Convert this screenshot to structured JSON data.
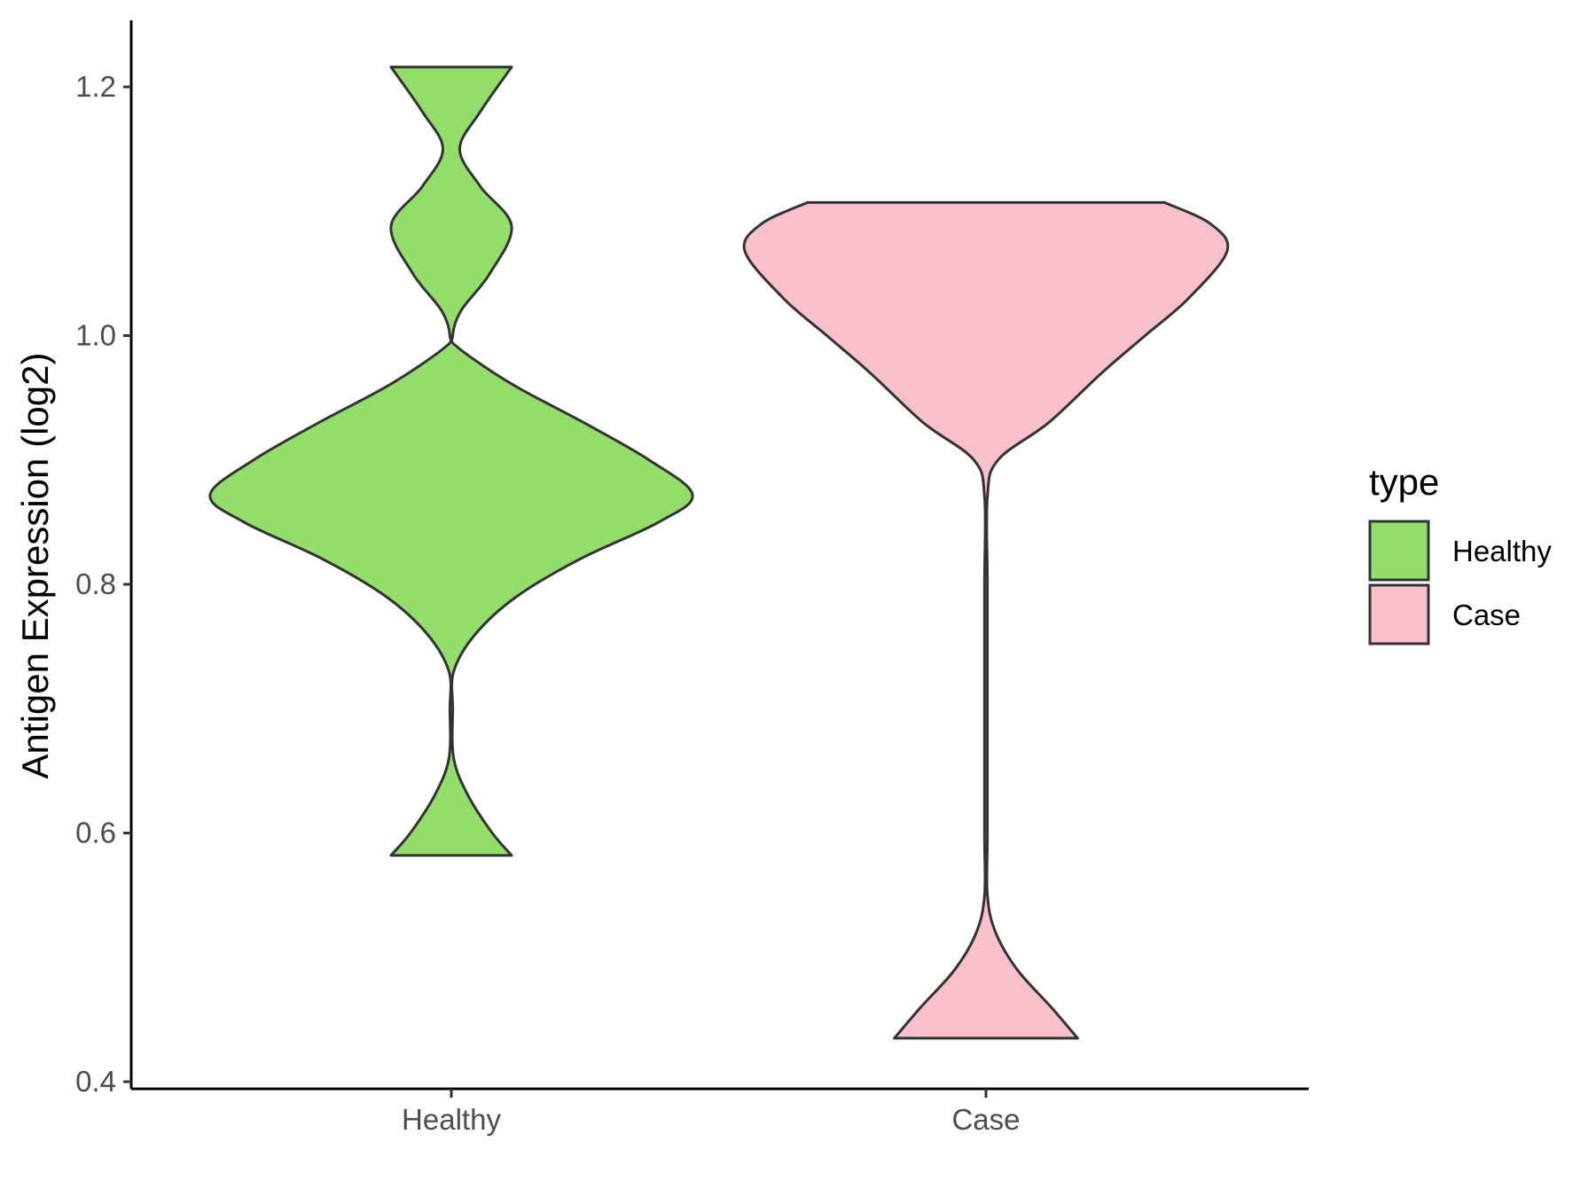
{
  "chart_data": {
    "type": "violin",
    "title": "",
    "xlabel": "",
    "ylabel": "Antigen Expression (log2)",
    "ylim": [
      0.4,
      1.25
    ],
    "yticks": [
      "0.4",
      "0.6",
      "0.8",
      "1.0",
      "1.2"
    ],
    "categories": [
      "Healthy",
      "Case"
    ],
    "grid": false,
    "legend": {
      "title": "type",
      "position": "right",
      "entries": [
        "Healthy",
        "Case"
      ]
    },
    "colors": {
      "Healthy": "#93dd6a",
      "Case": "#f7c0cb",
      "outline": "#333333"
    },
    "series": [
      {
        "name": "Healthy",
        "min": 0.582,
        "max": 1.216,
        "density": [
          [
            0.582,
            0.25
          ],
          [
            0.6,
            0.17
          ],
          [
            0.63,
            0.07
          ],
          [
            0.66,
            0.01
          ],
          [
            0.7,
            0.005
          ],
          [
            0.73,
            0.01
          ],
          [
            0.76,
            0.1
          ],
          [
            0.79,
            0.27
          ],
          [
            0.82,
            0.53
          ],
          [
            0.85,
            0.86
          ],
          [
            0.872,
            1.0
          ],
          [
            0.9,
            0.82
          ],
          [
            0.93,
            0.55
          ],
          [
            0.96,
            0.26
          ],
          [
            0.99,
            0.03
          ],
          [
            1.0,
            0.005
          ],
          [
            1.02,
            0.04
          ],
          [
            1.05,
            0.16
          ],
          [
            1.088,
            0.25
          ],
          [
            1.12,
            0.12
          ],
          [
            1.15,
            0.035
          ],
          [
            1.18,
            0.12
          ],
          [
            1.216,
            0.25
          ]
        ]
      },
      {
        "name": "Case",
        "min": 0.435,
        "max": 1.107,
        "density": [
          [
            0.435,
            0.38
          ],
          [
            0.46,
            0.27
          ],
          [
            0.49,
            0.13
          ],
          [
            0.52,
            0.04
          ],
          [
            0.55,
            0.005
          ],
          [
            0.6,
            0.004
          ],
          [
            0.7,
            0.004
          ],
          [
            0.8,
            0.004
          ],
          [
            0.87,
            0.005
          ],
          [
            0.9,
            0.05
          ],
          [
            0.93,
            0.26
          ],
          [
            0.97,
            0.48
          ],
          [
            1.0,
            0.66
          ],
          [
            1.03,
            0.84
          ],
          [
            1.068,
            1.0
          ],
          [
            1.09,
            0.93
          ],
          [
            1.107,
            0.74
          ]
        ]
      }
    ]
  }
}
